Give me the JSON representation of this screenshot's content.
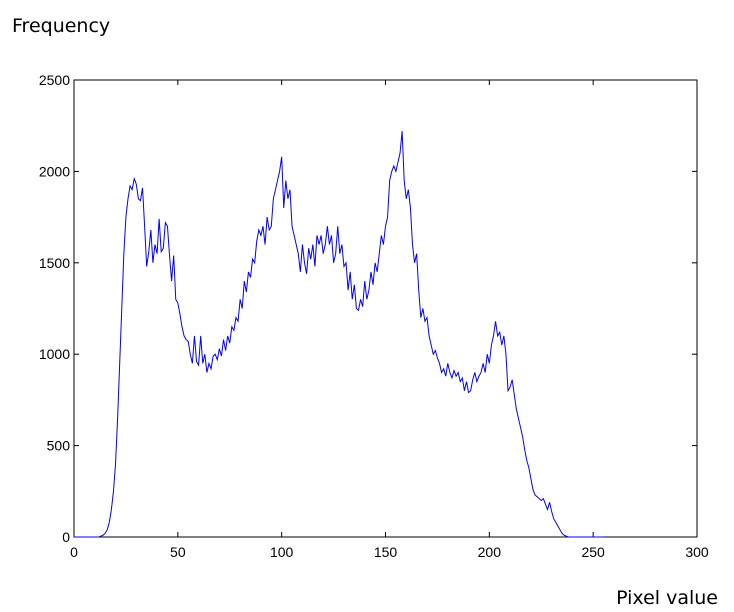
{
  "chart_data": {
    "type": "line",
    "ylabel": "Frequency",
    "xlabel": "Pixel value",
    "color": "#0000ff",
    "x": [
      0,
      1,
      2,
      3,
      4,
      5,
      6,
      7,
      8,
      9,
      10,
      11,
      12,
      13,
      14,
      15,
      16,
      17,
      18,
      19,
      20,
      21,
      22,
      23,
      24,
      25,
      26,
      27,
      28,
      29,
      30,
      31,
      32,
      33,
      34,
      35,
      36,
      37,
      38,
      39,
      40,
      41,
      42,
      43,
      44,
      45,
      46,
      47,
      48,
      49,
      50,
      51,
      52,
      53,
      54,
      55,
      56,
      57,
      58,
      59,
      60,
      61,
      62,
      63,
      64,
      65,
      66,
      67,
      68,
      69,
      70,
      71,
      72,
      73,
      74,
      75,
      76,
      77,
      78,
      79,
      80,
      81,
      82,
      83,
      84,
      85,
      86,
      87,
      88,
      89,
      90,
      91,
      92,
      93,
      94,
      95,
      96,
      97,
      98,
      99,
      100,
      101,
      102,
      103,
      104,
      105,
      106,
      107,
      108,
      109,
      110,
      111,
      112,
      113,
      114,
      115,
      116,
      117,
      118,
      119,
      120,
      121,
      122,
      123,
      124,
      125,
      126,
      127,
      128,
      129,
      130,
      131,
      132,
      133,
      134,
      135,
      136,
      137,
      138,
      139,
      140,
      141,
      142,
      143,
      144,
      145,
      146,
      147,
      148,
      149,
      150,
      151,
      152,
      153,
      154,
      155,
      156,
      157,
      158,
      159,
      160,
      161,
      162,
      163,
      164,
      165,
      166,
      167,
      168,
      169,
      170,
      171,
      172,
      173,
      174,
      175,
      176,
      177,
      178,
      179,
      180,
      181,
      182,
      183,
      184,
      185,
      186,
      187,
      188,
      189,
      190,
      191,
      192,
      193,
      194,
      195,
      196,
      197,
      198,
      199,
      200,
      201,
      202,
      203,
      204,
      205,
      206,
      207,
      208,
      209,
      210,
      211,
      212,
      213,
      214,
      215,
      216,
      217,
      218,
      219,
      220,
      221,
      222,
      223,
      224,
      225,
      226,
      227,
      228,
      229,
      230,
      231,
      232,
      233,
      234,
      235,
      236,
      237,
      238,
      239,
      240,
      241,
      242,
      243,
      244,
      245,
      246,
      247,
      248,
      249,
      250,
      251,
      252,
      253,
      254,
      255
    ],
    "values": [
      0,
      0,
      0,
      0,
      0,
      0,
      0,
      0,
      0,
      0,
      0,
      0,
      0,
      5,
      10,
      20,
      40,
      80,
      150,
      250,
      400,
      650,
      950,
      1250,
      1550,
      1750,
      1850,
      1920,
      1900,
      1960,
      1930,
      1850,
      1840,
      1910,
      1700,
      1480,
      1560,
      1680,
      1500,
      1600,
      1550,
      1740,
      1560,
      1580,
      1720,
      1700,
      1540,
      1400,
      1540,
      1300,
      1280,
      1220,
      1150,
      1100,
      1080,
      1070,
      1000,
      950,
      1100,
      960,
      940,
      1100,
      950,
      1000,
      900,
      950,
      920,
      990,
      1000,
      970,
      1030,
      990,
      1080,
      1020,
      1100,
      1060,
      1150,
      1130,
      1200,
      1180,
      1300,
      1250,
      1400,
      1340,
      1450,
      1420,
      1520,
      1500,
      1620,
      1680,
      1650,
      1700,
      1600,
      1750,
      1680,
      1700,
      1850,
      1900,
      1950,
      2000,
      2080,
      1800,
      1950,
      1850,
      1900,
      1700,
      1650,
      1600,
      1550,
      1450,
      1600,
      1500,
      1440,
      1580,
      1520,
      1600,
      1480,
      1650,
      1600,
      1650,
      1550,
      1600,
      1700,
      1600,
      1650,
      1500,
      1550,
      1700,
      1550,
      1600,
      1480,
      1500,
      1350,
      1450,
      1300,
      1380,
      1250,
      1240,
      1300,
      1260,
      1400,
      1300,
      1350,
      1450,
      1380,
      1500,
      1450,
      1550,
      1650,
      1600,
      1700,
      1750,
      1950,
      2000,
      2030,
      2000,
      2050,
      2100,
      2220,
      1950,
      1850,
      1900,
      1800,
      1600,
      1500,
      1550,
      1350,
      1200,
      1250,
      1180,
      1200,
      1100,
      1050,
      1000,
      1020,
      980,
      950,
      900,
      920,
      880,
      950,
      900,
      870,
      910,
      880,
      900,
      850,
      870,
      800,
      850,
      790,
      800,
      860,
      900,
      850,
      880,
      900,
      950,
      900,
      1000,
      950,
      1050,
      1100,
      1180,
      1100,
      1120,
      1050,
      1100,
      1000,
      800,
      820,
      860,
      780,
      700,
      650,
      600,
      550,
      480,
      420,
      380,
      320,
      260,
      230,
      220,
      210,
      200,
      210,
      180,
      150,
      190,
      140,
      100,
      80,
      60,
      40,
      20,
      10,
      5,
      0,
      0,
      0,
      0,
      0,
      0,
      0,
      0,
      0,
      0,
      0,
      0,
      0,
      0,
      0,
      0,
      0,
      0
    ],
    "xlim": [
      0,
      300
    ],
    "xticks": [
      0,
      50,
      100,
      150,
      200,
      250,
      300
    ],
    "ylim": [
      0,
      2500
    ],
    "yticks": [
      0,
      500,
      1000,
      1500,
      2000,
      2500
    ]
  }
}
